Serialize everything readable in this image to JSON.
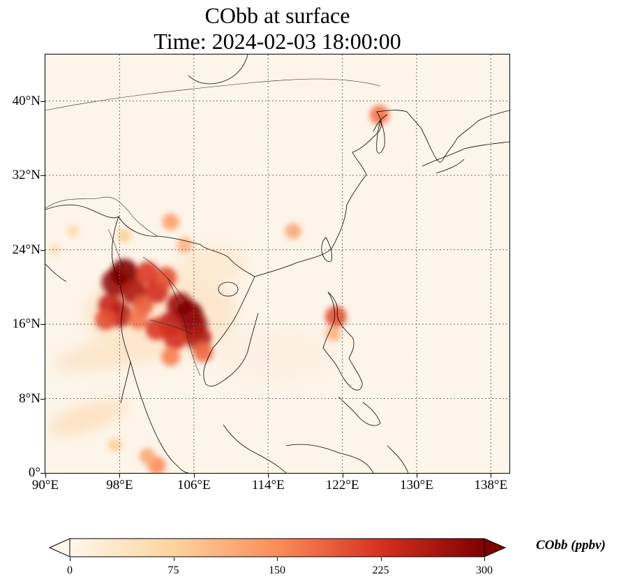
{
  "title": {
    "line1": "CObb at surface",
    "line2": "Time: 2024-02-03 18:00:00"
  },
  "map": {
    "lon_range": [
      90,
      140
    ],
    "lat_range": [
      0,
      45
    ],
    "lat_ticks": [
      {
        "value": 40,
        "label": "40°N"
      },
      {
        "value": 32,
        "label": "32°N"
      },
      {
        "value": 24,
        "label": "24°N"
      },
      {
        "value": 16,
        "label": "16°N"
      },
      {
        "value": 8,
        "label": "8°N"
      },
      {
        "value": 0,
        "label": "0°"
      }
    ],
    "lon_ticks": [
      {
        "value": 90,
        "label": "90°E"
      },
      {
        "value": 98,
        "label": "98°E"
      },
      {
        "value": 106,
        "label": "106°E"
      },
      {
        "value": 114,
        "label": "114°E"
      },
      {
        "value": 122,
        "label": "122°E"
      },
      {
        "value": 130,
        "label": "130°E"
      },
      {
        "value": 138,
        "label": "138°E"
      }
    ],
    "gridlines": "dotted",
    "background_color": "#fdf5ea",
    "coastline_color": "#000000"
  },
  "colorbar": {
    "label": "CObb (ppbv)",
    "colormap": "OrRd",
    "min": 0,
    "max": 300,
    "extend": "both",
    "ticks": [
      {
        "value": 0,
        "label": "0"
      },
      {
        "value": 75,
        "label": "75"
      },
      {
        "value": 150,
        "label": "150"
      },
      {
        "value": 225,
        "label": "225"
      },
      {
        "value": 300,
        "label": "300"
      }
    ],
    "colors": [
      "#fff7ec",
      "#fdd49e",
      "#fc8d59",
      "#d7301f",
      "#7f0000"
    ]
  },
  "hotspots": [
    {
      "lon": 97.5,
      "lat": 20.5,
      "level": 280
    },
    {
      "lon": 98.5,
      "lat": 21.5,
      "level": 300
    },
    {
      "lon": 99.5,
      "lat": 19.5,
      "level": 260
    },
    {
      "lon": 97.0,
      "lat": 18.0,
      "level": 240
    },
    {
      "lon": 98.0,
      "lat": 17.0,
      "level": 250
    },
    {
      "lon": 96.5,
      "lat": 16.5,
      "level": 200
    },
    {
      "lon": 101.0,
      "lat": 21.5,
      "level": 220
    },
    {
      "lon": 102.0,
      "lat": 19.5,
      "level": 230
    },
    {
      "lon": 103.0,
      "lat": 21.0,
      "level": 200
    },
    {
      "lon": 104.5,
      "lat": 18.0,
      "level": 270
    },
    {
      "lon": 105.5,
      "lat": 17.0,
      "level": 300
    },
    {
      "lon": 106.0,
      "lat": 16.0,
      "level": 280
    },
    {
      "lon": 103.5,
      "lat": 16.0,
      "level": 250
    },
    {
      "lon": 102.0,
      "lat": 15.5,
      "level": 220
    },
    {
      "lon": 104.0,
      "lat": 14.5,
      "level": 230
    },
    {
      "lon": 106.5,
      "lat": 14.5,
      "level": 260
    },
    {
      "lon": 107.0,
      "lat": 13.0,
      "level": 180
    },
    {
      "lon": 103.5,
      "lat": 12.5,
      "level": 160
    },
    {
      "lon": 100.5,
      "lat": 18.0,
      "level": 190
    },
    {
      "lon": 100.0,
      "lat": 16.5,
      "level": 170
    },
    {
      "lon": 105.0,
      "lat": 24.5,
      "level": 110
    },
    {
      "lon": 103.5,
      "lat": 27.0,
      "level": 130
    },
    {
      "lon": 98.5,
      "lat": 25.5,
      "level": 80
    },
    {
      "lon": 116.7,
      "lat": 26.0,
      "level": 120
    },
    {
      "lon": 121.3,
      "lat": 16.8,
      "level": 200
    },
    {
      "lon": 121.0,
      "lat": 15.0,
      "level": 110
    },
    {
      "lon": 126.0,
      "lat": 38.5,
      "level": 170
    },
    {
      "lon": 102.0,
      "lat": 0.8,
      "level": 150
    },
    {
      "lon": 101.0,
      "lat": 1.8,
      "level": 120
    },
    {
      "lon": 97.5,
      "lat": 3.0,
      "level": 80
    },
    {
      "lon": 93.0,
      "lat": 26.0,
      "level": 60
    },
    {
      "lon": 91.0,
      "lat": 24.0,
      "level": 50
    }
  ]
}
